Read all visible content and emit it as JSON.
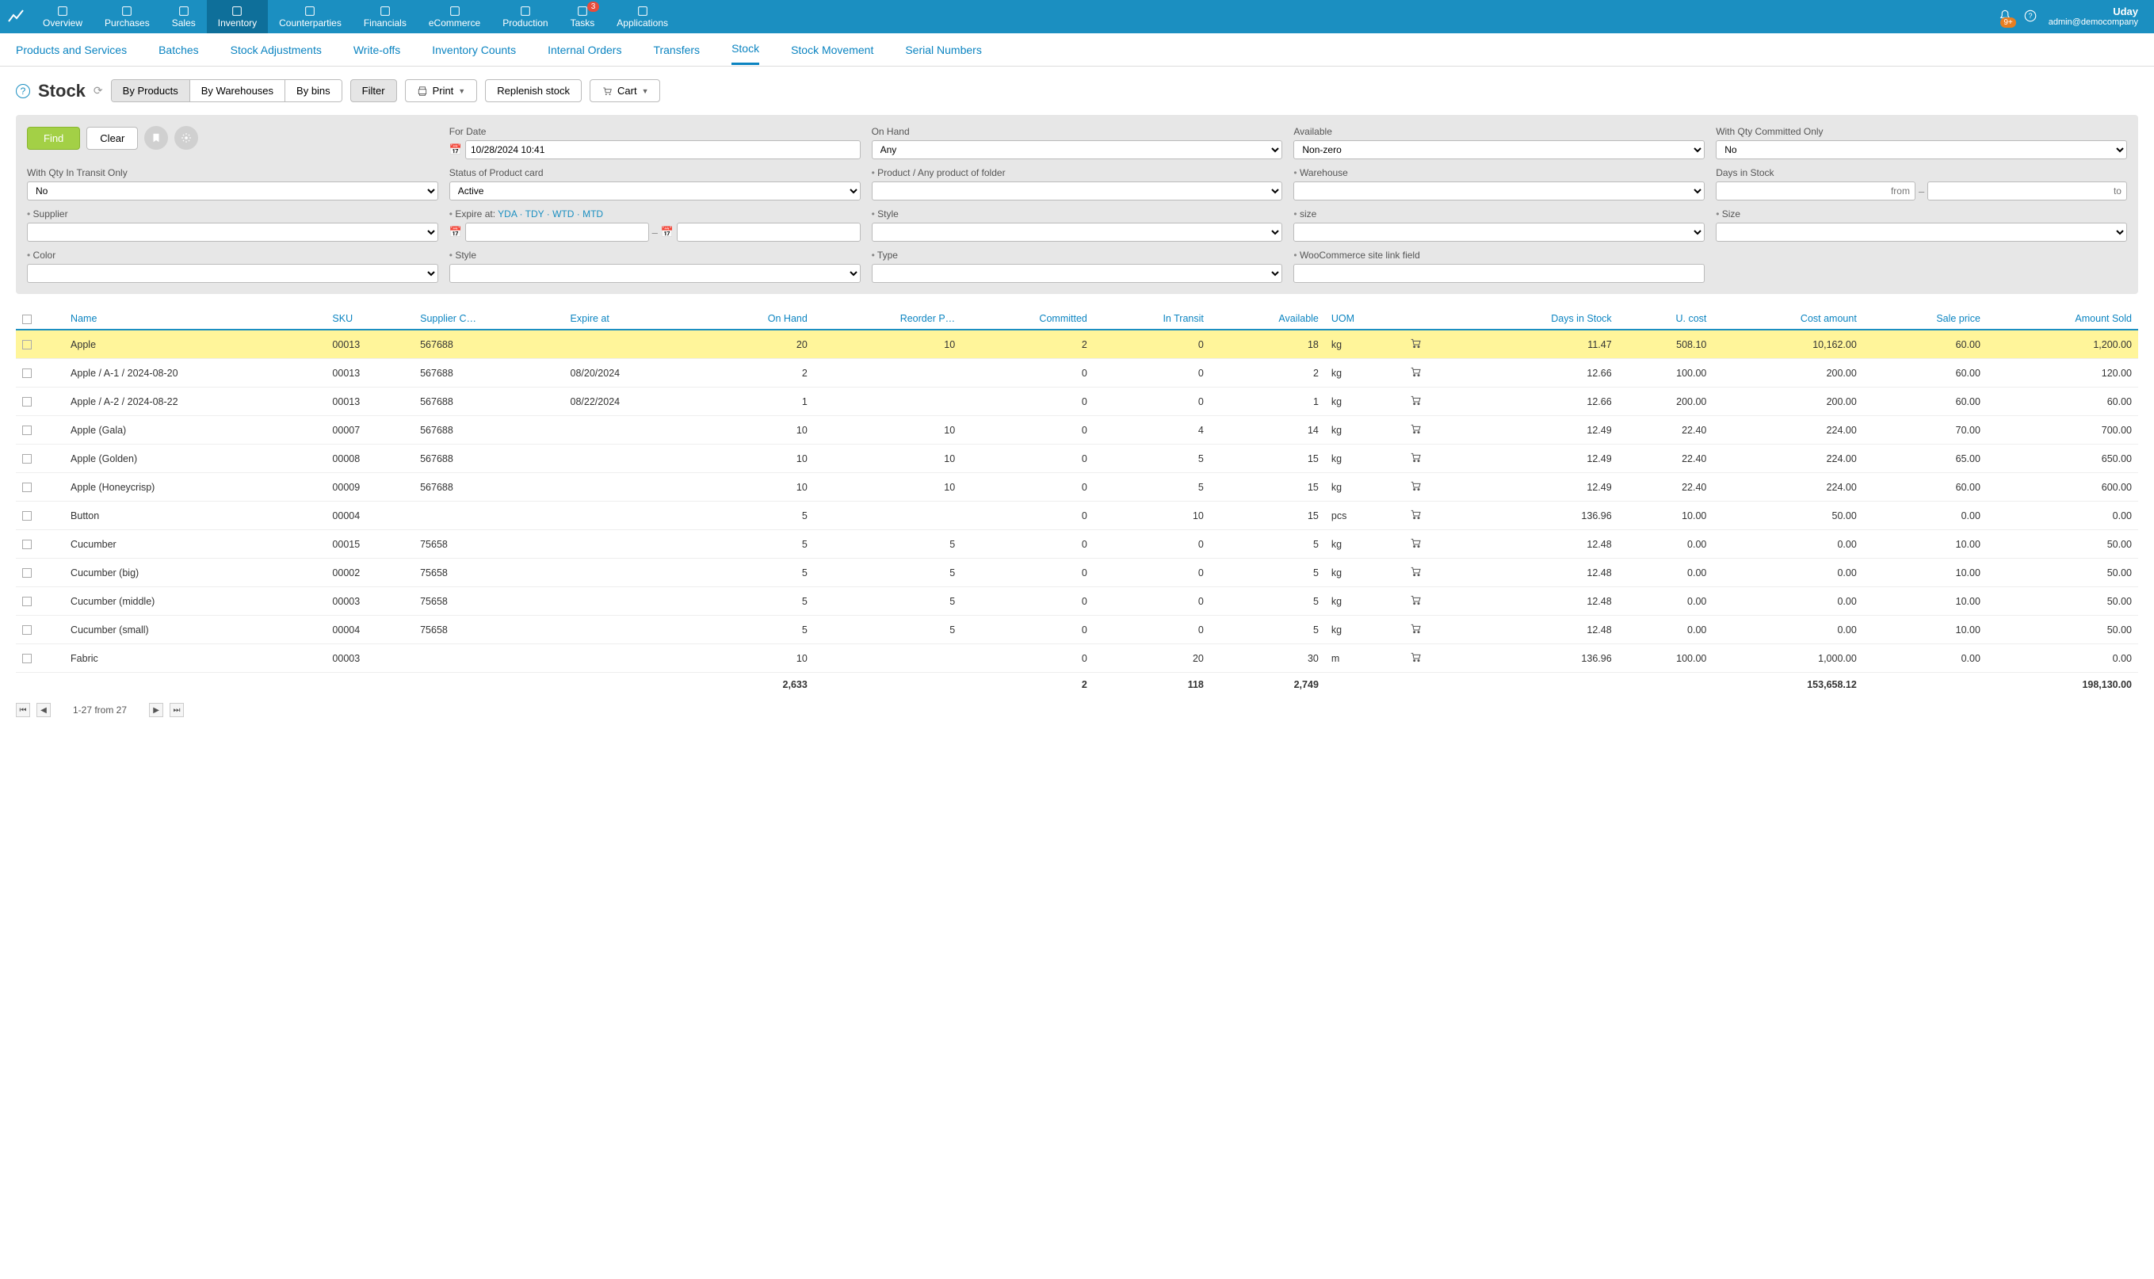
{
  "colors": {
    "topnav_bg": "#1b8fc1",
    "topnav_active": "#0e6f9a",
    "link": "#0b84c1",
    "find_btn": "#a3d046",
    "highlight_row": "#fff59a",
    "badge_red": "#e74c3c",
    "badge_orange": "#e67e22"
  },
  "topnav": {
    "items": [
      {
        "label": "Overview",
        "icon": "chart-line-icon"
      },
      {
        "label": "Purchases",
        "icon": "bag-icon"
      },
      {
        "label": "Sales",
        "icon": "tag-icon"
      },
      {
        "label": "Inventory",
        "icon": "cart-icon",
        "active": true
      },
      {
        "label": "Counterparties",
        "icon": "people-icon"
      },
      {
        "label": "Financials",
        "icon": "wallet-icon"
      },
      {
        "label": "eCommerce",
        "icon": "store-icon"
      },
      {
        "label": "Production",
        "icon": "factory-icon"
      },
      {
        "label": "Tasks",
        "icon": "clipboard-icon",
        "badge": "3"
      },
      {
        "label": "Applications",
        "icon": "apps-icon"
      }
    ],
    "bell_badge": "9+",
    "user_name": "Uday",
    "user_email": "admin@democompany"
  },
  "subnav": {
    "items": [
      "Products and Services",
      "Batches",
      "Stock Adjustments",
      "Write-offs",
      "Inventory Counts",
      "Internal Orders",
      "Transfers",
      "Stock",
      "Stock Movement",
      "Serial Numbers"
    ],
    "active": "Stock"
  },
  "titlebar": {
    "title": "Stock",
    "view_buttons": [
      "By Products",
      "By Warehouses",
      "By bins"
    ],
    "view_active": "By Products",
    "filter_label": "Filter",
    "print_label": "Print",
    "replenish_label": "Replenish stock",
    "cart_label": "Cart"
  },
  "filters": {
    "find": "Find",
    "clear": "Clear",
    "for_date_label": "For Date",
    "for_date_value": "10/28/2024 10:41",
    "on_hand_label": "On Hand",
    "on_hand_value": "Any",
    "available_label": "Available",
    "available_value": "Non-zero",
    "qty_committed_label": "With Qty Committed Only",
    "qty_committed_value": "No",
    "qty_transit_label": "With Qty In Transit Only",
    "qty_transit_value": "No",
    "status_label": "Status of Product card",
    "status_value": "Active",
    "product_label": "Product / Any product of folder",
    "warehouse_label": "Warehouse",
    "days_stock_label": "Days in Stock",
    "days_from": "from",
    "days_to": "to",
    "supplier_label": "Supplier",
    "expire_label": "Expire at:",
    "expire_links": [
      "YDA",
      "TDY",
      "WTD",
      "MTD"
    ],
    "style_label": "Style",
    "size_lc_label": "size",
    "size_label": "Size",
    "color_label": "Color",
    "style2_label": "Style",
    "type_label": "Type",
    "woo_label": "WooCommerce site link field"
  },
  "table": {
    "columns": [
      {
        "key": "name",
        "label": "Name",
        "align": "left"
      },
      {
        "key": "sku",
        "label": "SKU",
        "align": "left"
      },
      {
        "key": "supplier",
        "label": "Supplier C…",
        "align": "left"
      },
      {
        "key": "expire",
        "label": "Expire at",
        "align": "left"
      },
      {
        "key": "onhand",
        "label": "On Hand",
        "align": "right"
      },
      {
        "key": "reorder",
        "label": "Reorder P…",
        "align": "right"
      },
      {
        "key": "committed",
        "label": "Committed",
        "align": "right"
      },
      {
        "key": "intransit",
        "label": "In Transit",
        "align": "right"
      },
      {
        "key": "available",
        "label": "Available",
        "align": "right"
      },
      {
        "key": "uom",
        "label": "UOM",
        "align": "left"
      },
      {
        "key": "cart",
        "label": "",
        "align": "center"
      },
      {
        "key": "days",
        "label": "Days in Stock",
        "align": "right"
      },
      {
        "key": "ucost",
        "label": "U. cost",
        "align": "right"
      },
      {
        "key": "costamt",
        "label": "Cost amount",
        "align": "right"
      },
      {
        "key": "sale",
        "label": "Sale price",
        "align": "right"
      },
      {
        "key": "amtsold",
        "label": "Amount Sold",
        "align": "right"
      }
    ],
    "rows": [
      {
        "hl": true,
        "name": "Apple",
        "sku": "00013",
        "supplier": "567688",
        "expire": "",
        "onhand": "20",
        "reorder": "10",
        "committed": "2",
        "intransit": "0",
        "available": "18",
        "uom": "kg",
        "days": "11.47",
        "ucost": "508.10",
        "costamt": "10,162.00",
        "sale": "60.00",
        "amtsold": "1,200.00"
      },
      {
        "name": "Apple / A-1 / 2024-08-20",
        "sku": "00013",
        "supplier": "567688",
        "expire": "08/20/2024",
        "onhand": "2",
        "reorder": "",
        "committed": "0",
        "intransit": "0",
        "available": "2",
        "uom": "kg",
        "days": "12.66",
        "ucost": "100.00",
        "costamt": "200.00",
        "sale": "60.00",
        "amtsold": "120.00"
      },
      {
        "name": "Apple / A-2 / 2024-08-22",
        "sku": "00013",
        "supplier": "567688",
        "expire": "08/22/2024",
        "onhand": "1",
        "reorder": "",
        "committed": "0",
        "intransit": "0",
        "available": "1",
        "uom": "kg",
        "days": "12.66",
        "ucost": "200.00",
        "costamt": "200.00",
        "sale": "60.00",
        "amtsold": "60.00"
      },
      {
        "name": "Apple (Gala)",
        "sku": "00007",
        "supplier": "567688",
        "expire": "",
        "onhand": "10",
        "reorder": "10",
        "committed": "0",
        "intransit": "4",
        "available": "14",
        "uom": "kg",
        "days": "12.49",
        "ucost": "22.40",
        "costamt": "224.00",
        "sale": "70.00",
        "amtsold": "700.00"
      },
      {
        "name": "Apple (Golden)",
        "sku": "00008",
        "supplier": "567688",
        "expire": "",
        "onhand": "10",
        "reorder": "10",
        "committed": "0",
        "intransit": "5",
        "available": "15",
        "uom": "kg",
        "days": "12.49",
        "ucost": "22.40",
        "costamt": "224.00",
        "sale": "65.00",
        "amtsold": "650.00"
      },
      {
        "name": "Apple (Honeycrisp)",
        "sku": "00009",
        "supplier": "567688",
        "expire": "",
        "onhand": "10",
        "reorder": "10",
        "committed": "0",
        "intransit": "5",
        "available": "15",
        "uom": "kg",
        "days": "12.49",
        "ucost": "22.40",
        "costamt": "224.00",
        "sale": "60.00",
        "amtsold": "600.00"
      },
      {
        "name": "Button",
        "sku": "00004",
        "supplier": "",
        "expire": "",
        "onhand": "5",
        "reorder": "",
        "committed": "0",
        "intransit": "10",
        "available": "15",
        "uom": "pcs",
        "days": "136.96",
        "ucost": "10.00",
        "costamt": "50.00",
        "sale": "0.00",
        "amtsold": "0.00"
      },
      {
        "name": "Cucumber",
        "sku": "00015",
        "supplier": "75658",
        "expire": "",
        "onhand": "5",
        "reorder": "5",
        "committed": "0",
        "intransit": "0",
        "available": "5",
        "uom": "kg",
        "days": "12.48",
        "ucost": "0.00",
        "costamt": "0.00",
        "sale": "10.00",
        "amtsold": "50.00"
      },
      {
        "name": "Cucumber (big)",
        "sku": "00002",
        "supplier": "75658",
        "expire": "",
        "onhand": "5",
        "reorder": "5",
        "committed": "0",
        "intransit": "0",
        "available": "5",
        "uom": "kg",
        "days": "12.48",
        "ucost": "0.00",
        "costamt": "0.00",
        "sale": "10.00",
        "amtsold": "50.00"
      },
      {
        "name": "Cucumber (middle)",
        "sku": "00003",
        "supplier": "75658",
        "expire": "",
        "onhand": "5",
        "reorder": "5",
        "committed": "0",
        "intransit": "0",
        "available": "5",
        "uom": "kg",
        "days": "12.48",
        "ucost": "0.00",
        "costamt": "0.00",
        "sale": "10.00",
        "amtsold": "50.00"
      },
      {
        "name": "Cucumber (small)",
        "sku": "00004",
        "supplier": "75658",
        "expire": "",
        "onhand": "5",
        "reorder": "5",
        "committed": "0",
        "intransit": "0",
        "available": "5",
        "uom": "kg",
        "days": "12.48",
        "ucost": "0.00",
        "costamt": "0.00",
        "sale": "10.00",
        "amtsold": "50.00"
      },
      {
        "name": "Fabric",
        "sku": "00003",
        "supplier": "",
        "expire": "",
        "onhand": "10",
        "reorder": "",
        "committed": "0",
        "intransit": "20",
        "available": "30",
        "uom": "m",
        "days": "136.96",
        "ucost": "100.00",
        "costamt": "1,000.00",
        "sale": "0.00",
        "amtsold": "0.00"
      }
    ],
    "totals": {
      "onhand": "2,633",
      "committed": "2",
      "intransit": "118",
      "available": "2,749",
      "costamt": "153,658.12",
      "amtsold": "198,130.00"
    }
  },
  "pager": {
    "text": "1-27 from 27"
  }
}
